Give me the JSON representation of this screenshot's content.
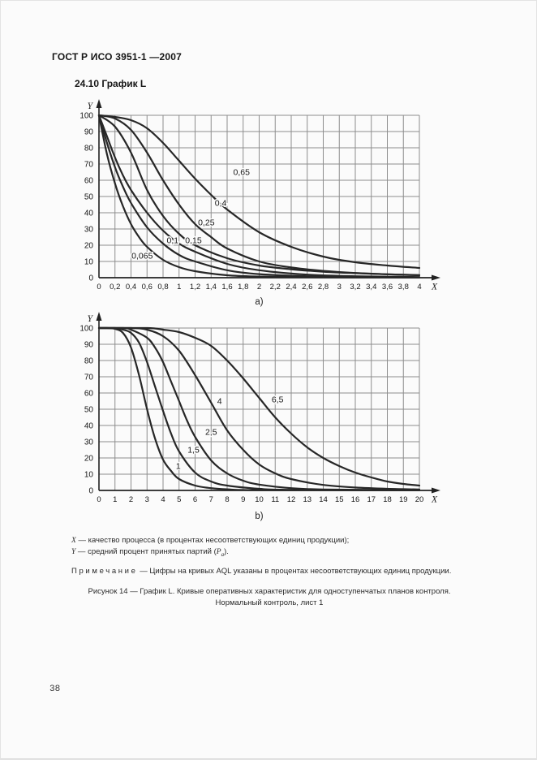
{
  "page": {
    "header": "ГОСТ Р ИСО 3951-1 —2007",
    "section_title": "24.10 График L",
    "legend": {
      "x_symbol": "X",
      "x_text": " — качество процесса (в процентах несоответствующих единиц продукции);",
      "y_symbol": "Y",
      "y_text": " — средний процент принятых партий (",
      "y_var": "P",
      "y_sub": "a",
      "y_tail": ")."
    },
    "note_label": "Примечание",
    "note_text": " — Цифры на кривых AQL указаны в процентах несоответствующих единиц продукции.",
    "caption_line1": "Рисунок 14 — График L. Кривые оперативных характеристик для одноступенчатых планов контроля.",
    "caption_line2": "Нормальный контроль, лист 1",
    "page_number": "38"
  },
  "colors": {
    "background": "#fbfbfb",
    "grid": "#8d8d8d",
    "axis": "#222222",
    "curve": "#272727",
    "text": "#161616"
  },
  "chart_data": [
    {
      "id": "a",
      "type": "line",
      "title": "",
      "sub_label": "a)",
      "xlabel": "X",
      "ylabel": "Y",
      "xlim": [
        0,
        4
      ],
      "ylim": [
        0,
        100
      ],
      "grid": true,
      "x_tick_values": [
        0,
        0.2,
        0.4,
        0.6,
        0.8,
        1,
        1.2,
        1.4,
        1.6,
        1.8,
        2,
        2.2,
        2.4,
        2.6,
        2.8,
        3,
        3.2,
        3.4,
        3.6,
        3.8,
        4
      ],
      "x_tick_labels": [
        "0",
        "0,2",
        "0,4",
        "0,6",
        "0,8",
        "1",
        "1,2",
        "1,4",
        "1,6",
        "1,8",
        "2",
        "2,2",
        "2,4",
        "2,6",
        "2,8",
        "3",
        "3,2",
        "3,4",
        "3,6",
        "3,8",
        "4"
      ],
      "y_tick_values": [
        0,
        10,
        20,
        30,
        40,
        50,
        60,
        70,
        80,
        90,
        100
      ],
      "y_tick_labels": [
        "0",
        "10",
        "20",
        "30",
        "40",
        "50",
        "60",
        "70",
        "80",
        "90",
        "100"
      ],
      "series": [
        {
          "name": "0,065",
          "label_x": 0.54,
          "label_y": 13.5,
          "points": [
            [
              0,
              100
            ],
            [
              0.1,
              76
            ],
            [
              0.2,
              58
            ],
            [
              0.3,
              44
            ],
            [
              0.4,
              33
            ],
            [
              0.5,
              25
            ],
            [
              0.6,
              19
            ],
            [
              0.8,
              11
            ],
            [
              1.0,
              6.5
            ],
            [
              1.2,
              4
            ],
            [
              1.6,
              1.5
            ],
            [
              2.0,
              0.7
            ],
            [
              2.6,
              0.3
            ],
            [
              3.2,
              0.2
            ],
            [
              4,
              0.1
            ]
          ]
        },
        {
          "name": "0,1",
          "label_x": 0.92,
          "label_y": 23,
          "points": [
            [
              0,
              100
            ],
            [
              0.1,
              83
            ],
            [
              0.2,
              68
            ],
            [
              0.3,
              56
            ],
            [
              0.4,
              46
            ],
            [
              0.6,
              31
            ],
            [
              0.8,
              21
            ],
            [
              1.0,
              14
            ],
            [
              1.2,
              10
            ],
            [
              1.6,
              4.6
            ],
            [
              2.0,
              2.2
            ],
            [
              2.6,
              0.9
            ],
            [
              3.2,
              0.4
            ],
            [
              4,
              0.2
            ]
          ]
        },
        {
          "name": "0,15",
          "label_x": 1.18,
          "label_y": 23,
          "points": [
            [
              0,
              100
            ],
            [
              0.1,
              87
            ],
            [
              0.2,
              74
            ],
            [
              0.3,
              63
            ],
            [
              0.4,
              54
            ],
            [
              0.6,
              40
            ],
            [
              0.8,
              29
            ],
            [
              1.0,
              21
            ],
            [
              1.2,
              16
            ],
            [
              1.6,
              8.5
            ],
            [
              2.0,
              4.6
            ],
            [
              2.6,
              1.9
            ],
            [
              3.2,
              0.9
            ],
            [
              4,
              0.4
            ]
          ]
        },
        {
          "name": "0,25",
          "label_x": 1.34,
          "label_y": 34,
          "points": [
            [
              0,
              100
            ],
            [
              0.2,
              93
            ],
            [
              0.4,
              77
            ],
            [
              0.6,
              54
            ],
            [
              0.8,
              38
            ],
            [
              1.0,
              27
            ],
            [
              1.2,
              20
            ],
            [
              1.6,
              12
            ],
            [
              2.0,
              7.5
            ],
            [
              2.4,
              5.2
            ],
            [
              2.8,
              3.7
            ],
            [
              3.2,
              2.8
            ],
            [
              3.6,
              2.1
            ],
            [
              4,
              1.6
            ]
          ]
        },
        {
          "name": "0,4",
          "label_x": 1.52,
          "label_y": 46,
          "points": [
            [
              0,
              100
            ],
            [
              0.2,
              98
            ],
            [
              0.4,
              91
            ],
            [
              0.6,
              77
            ],
            [
              0.8,
              60
            ],
            [
              1.0,
              45
            ],
            [
              1.2,
              33
            ],
            [
              1.4,
              25
            ],
            [
              1.6,
              18
            ],
            [
              2.0,
              10
            ],
            [
              2.4,
              6.3
            ],
            [
              2.8,
              4.2
            ],
            [
              3.2,
              2.9
            ],
            [
              3.6,
              2.1
            ],
            [
              4,
              1.5
            ]
          ]
        },
        {
          "name": "0,65",
          "label_x": 1.78,
          "label_y": 65,
          "points": [
            [
              0,
              100
            ],
            [
              0.2,
              99
            ],
            [
              0.4,
              97
            ],
            [
              0.6,
              92
            ],
            [
              0.8,
              83
            ],
            [
              1.0,
              72
            ],
            [
              1.2,
              61
            ],
            [
              1.4,
              51
            ],
            [
              1.6,
              42
            ],
            [
              2.0,
              28
            ],
            [
              2.4,
              19
            ],
            [
              2.8,
              13
            ],
            [
              3.2,
              9.5
            ],
            [
              3.6,
              7.5
            ],
            [
              4,
              6
            ]
          ]
        }
      ]
    },
    {
      "id": "b",
      "type": "line",
      "title": "",
      "sub_label": "b)",
      "xlabel": "X",
      "ylabel": "Y",
      "xlim": [
        0,
        20
      ],
      "ylim": [
        0,
        100
      ],
      "grid": true,
      "x_tick_values": [
        0,
        1,
        2,
        3,
        4,
        5,
        6,
        7,
        8,
        9,
        10,
        11,
        12,
        13,
        14,
        15,
        16,
        17,
        18,
        19,
        20
      ],
      "x_tick_labels": [
        "0",
        "1",
        "2",
        "3",
        "4",
        "5",
        "6",
        "7",
        "8",
        "9",
        "10",
        "11",
        "12",
        "13",
        "14",
        "15",
        "16",
        "17",
        "18",
        "19",
        "20"
      ],
      "y_tick_values": [
        0,
        10,
        20,
        30,
        40,
        50,
        60,
        70,
        80,
        90,
        100
      ],
      "y_tick_labels": [
        "0",
        "10",
        "20",
        "30",
        "40",
        "50",
        "60",
        "70",
        "80",
        "90",
        "100"
      ],
      "series": [
        {
          "name": "1",
          "label_x": 4.95,
          "label_y": 15,
          "points": [
            [
              0,
              100
            ],
            [
              0.5,
              100
            ],
            [
              1,
              99.5
            ],
            [
              1.5,
              97
            ],
            [
              2,
              88
            ],
            [
              2.5,
              71
            ],
            [
              3,
              50
            ],
            [
              3.5,
              32
            ],
            [
              4,
              19
            ],
            [
              4.5,
              12
            ],
            [
              5,
              7
            ],
            [
              6,
              3
            ],
            [
              7,
              1.4
            ],
            [
              8,
              0.7
            ],
            [
              10,
              0.2
            ],
            [
              20,
              0.1
            ]
          ]
        },
        {
          "name": "1,5",
          "label_x": 5.9,
          "label_y": 25,
          "points": [
            [
              0,
              100
            ],
            [
              1,
              100
            ],
            [
              1.5,
              99
            ],
            [
              2,
              97
            ],
            [
              2.5,
              91
            ],
            [
              3,
              79
            ],
            [
              3.5,
              64
            ],
            [
              4,
              49
            ],
            [
              4.5,
              35
            ],
            [
              5,
              24
            ],
            [
              6,
              11
            ],
            [
              7,
              5.5
            ],
            [
              8,
              3
            ],
            [
              10,
              1
            ],
            [
              12,
              0.4
            ],
            [
              20,
              0.1
            ]
          ]
        },
        {
          "name": "2,5",
          "label_x": 7.0,
          "label_y": 36,
          "points": [
            [
              0,
              100
            ],
            [
              1.5,
              100
            ],
            [
              2,
              99
            ],
            [
              3,
              94
            ],
            [
              3.5,
              88
            ],
            [
              4,
              79
            ],
            [
              4.5,
              67
            ],
            [
              5,
              55
            ],
            [
              5.5,
              43
            ],
            [
              6,
              33
            ],
            [
              7,
              18.5
            ],
            [
              8,
              10.5
            ],
            [
              9,
              6
            ],
            [
              10,
              3.6
            ],
            [
              12,
              1.4
            ],
            [
              14,
              0.6
            ],
            [
              20,
              0.1
            ]
          ]
        },
        {
          "name": "4",
          "label_x": 7.53,
          "label_y": 55,
          "points": [
            [
              0,
              100
            ],
            [
              2,
              100
            ],
            [
              3,
              99
            ],
            [
              4,
              95
            ],
            [
              5,
              86
            ],
            [
              6,
              71
            ],
            [
              7,
              54
            ],
            [
              8,
              37
            ],
            [
              9,
              25
            ],
            [
              10,
              16
            ],
            [
              11,
              10.5
            ],
            [
              12,
              7
            ],
            [
              14,
              3.4
            ],
            [
              16,
              1.8
            ],
            [
              18,
              1
            ],
            [
              20,
              0.6
            ]
          ]
        },
        {
          "name": "6,5",
          "label_x": 11.15,
          "label_y": 56,
          "points": [
            [
              0,
              100
            ],
            [
              3,
              100
            ],
            [
              4,
              99
            ],
            [
              5,
              97.5
            ],
            [
              6,
              94
            ],
            [
              7,
              89
            ],
            [
              8,
              80
            ],
            [
              9,
              69
            ],
            [
              10,
              57
            ],
            [
              11,
              45
            ],
            [
              12,
              35
            ],
            [
              13,
              26.5
            ],
            [
              14,
              20
            ],
            [
              15,
              15
            ],
            [
              16,
              11
            ],
            [
              17,
              8
            ],
            [
              18,
              5.5
            ],
            [
              19,
              4
            ],
            [
              20,
              3
            ]
          ]
        }
      ]
    }
  ]
}
